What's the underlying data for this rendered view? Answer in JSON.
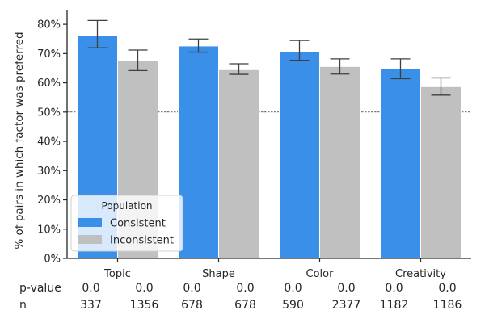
{
  "chart_data": {
    "type": "bar",
    "categories": [
      "Topic",
      "Shape",
      "Color",
      "Creativity"
    ],
    "series": [
      {
        "name": "Consistent",
        "color": "#3a8fe8",
        "values": [
          76.3,
          72.6,
          70.7,
          64.9
        ],
        "error_low": [
          72.0,
          70.5,
          67.7,
          61.4
        ],
        "error_high": [
          81.3,
          75.0,
          74.5,
          68.2
        ],
        "pvalues": [
          "0.0",
          "0.0",
          "0.0",
          "0.0"
        ],
        "n": [
          "337",
          "678",
          "590",
          "1182"
        ]
      },
      {
        "name": "Inconsistent",
        "color": "#c0c0c0",
        "values": [
          67.7,
          64.5,
          65.6,
          58.7
        ],
        "error_low": [
          64.2,
          62.9,
          63.0,
          55.8
        ],
        "error_high": [
          71.2,
          66.5,
          68.2,
          61.7
        ],
        "pvalues": [
          "0.0",
          "0.0",
          "0.0",
          "0.0"
        ],
        "n": [
          "1356",
          "678",
          "2377",
          "1186"
        ]
      }
    ],
    "ylabel": "% of pairs in which factor was preferred",
    "xlabel": "",
    "ylim": [
      0,
      85
    ],
    "yticks": [
      "0%",
      "10%",
      "20%",
      "30%",
      "40%",
      "50%",
      "60%",
      "70%",
      "80%"
    ],
    "ytick_values": [
      0,
      10,
      20,
      30,
      40,
      50,
      60,
      70,
      80
    ],
    "reference_line": 50,
    "legend": {
      "title": "Population",
      "position": "lower-left",
      "entries": [
        "Consistent",
        "Inconsistent"
      ]
    },
    "row_labels": {
      "pvalue": "p-value",
      "n": "n"
    },
    "colors": {
      "axis": "#262626",
      "errorbar": "#3f3f3f",
      "reference": "#000000",
      "bar_edge": "#ffffff"
    }
  }
}
